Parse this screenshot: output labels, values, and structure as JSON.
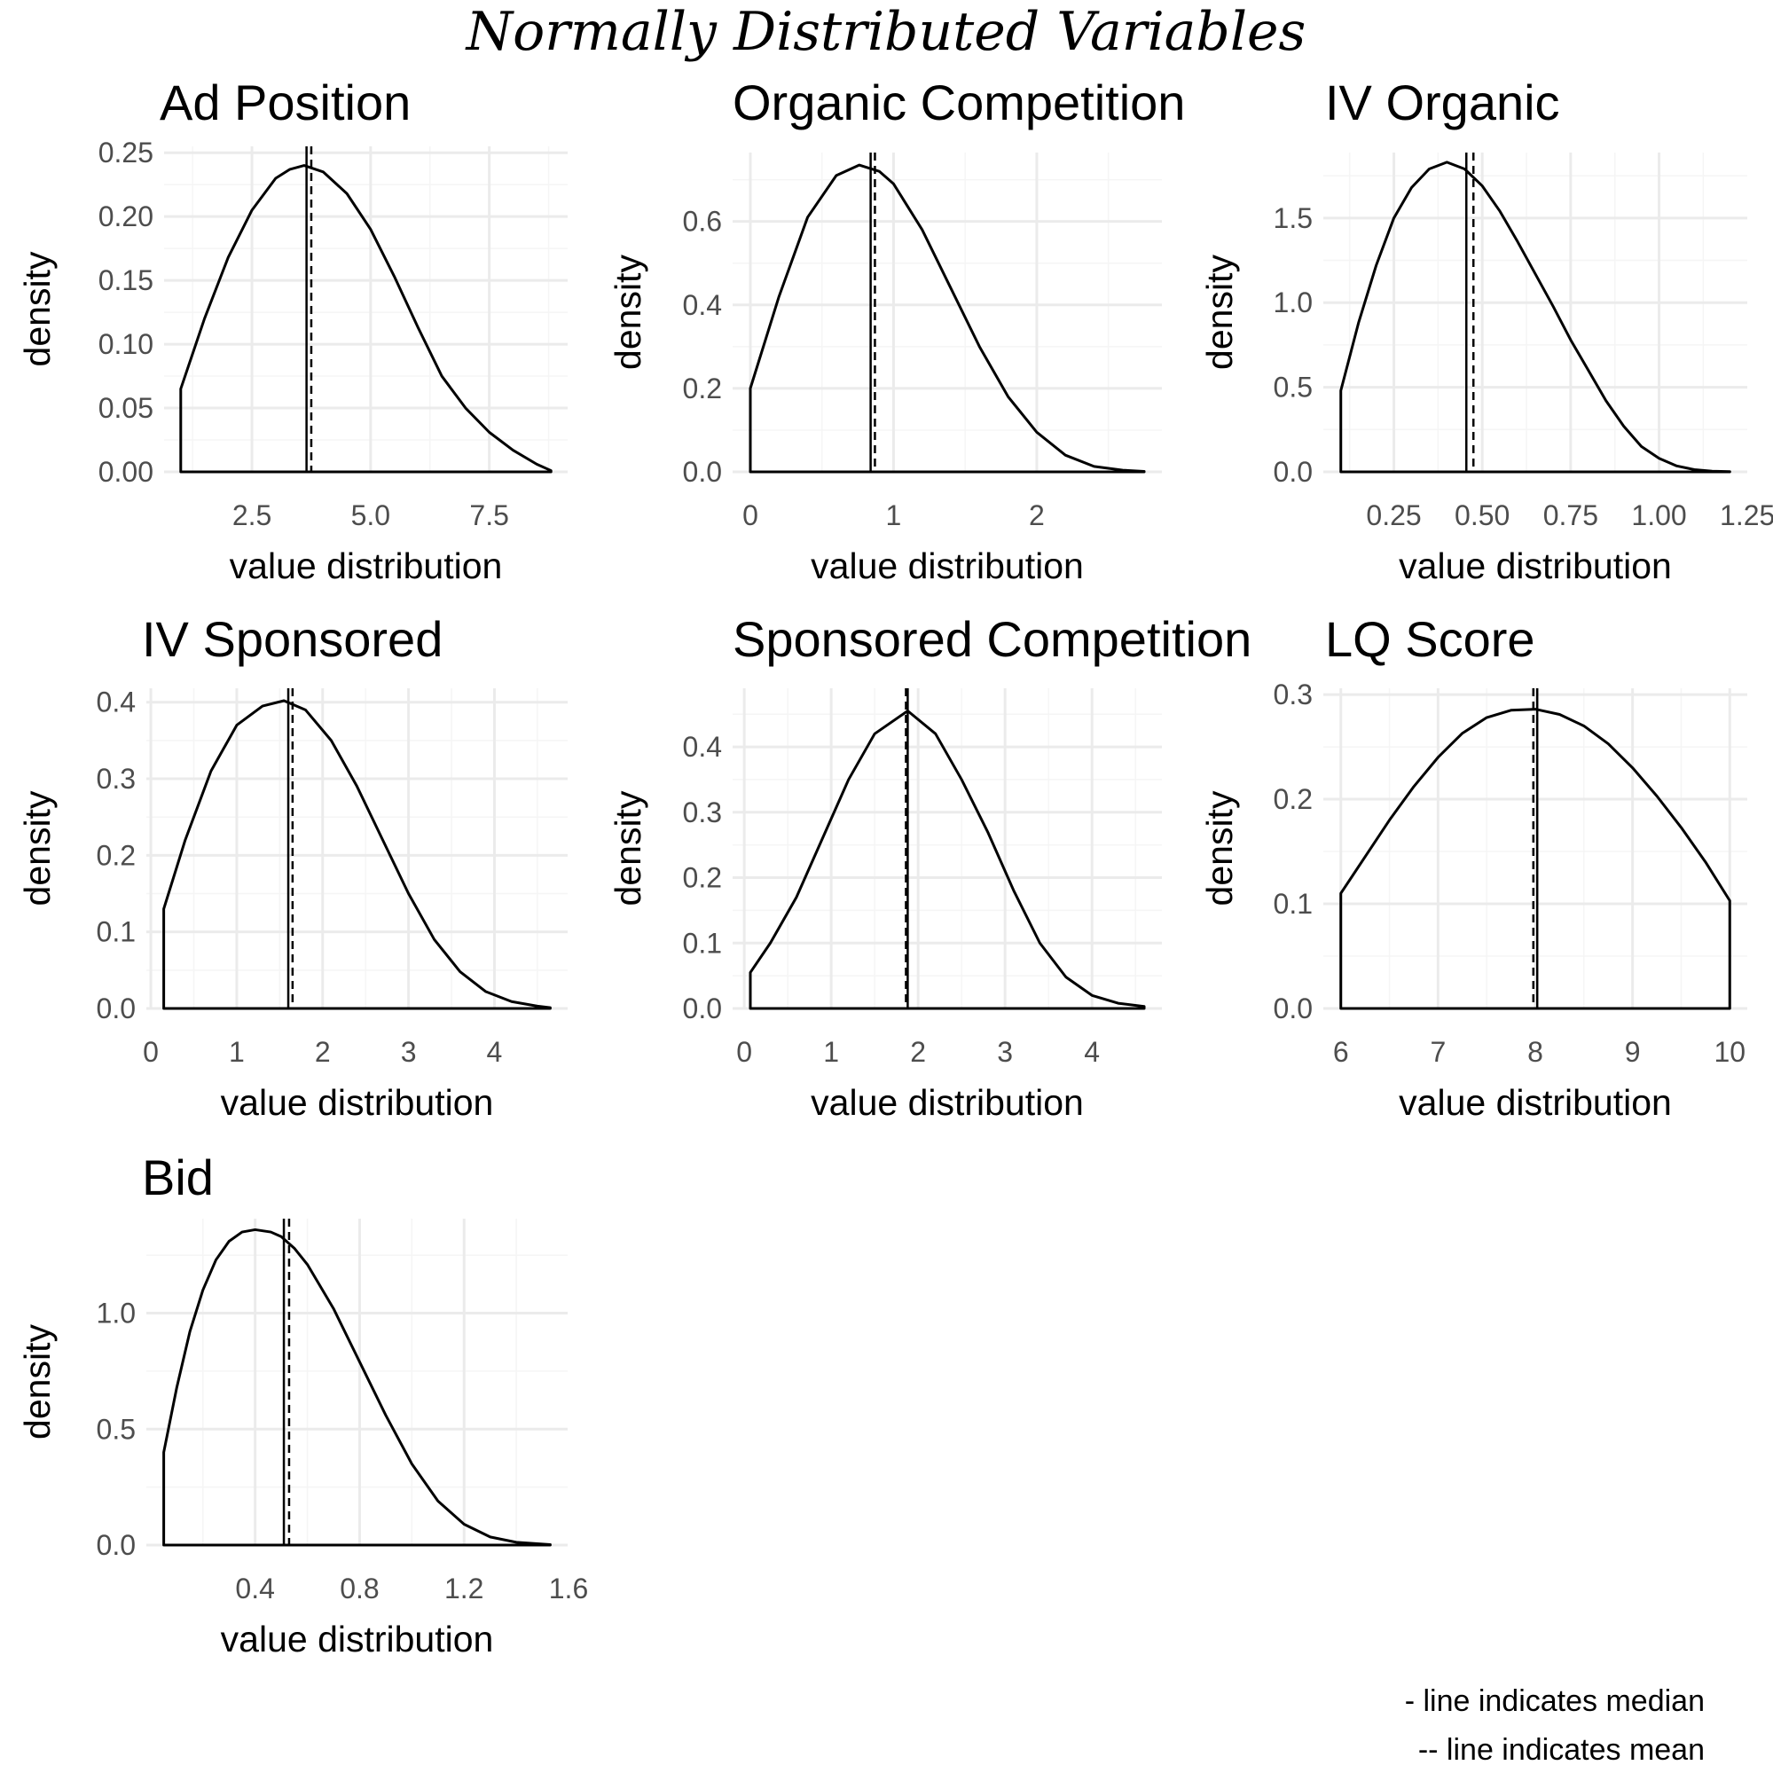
{
  "figure": {
    "title": "Normally Distributed Variables",
    "notes": [
      "- line indicates median",
      "-- line indicates mean"
    ]
  },
  "chart_data": [
    {
      "type": "line",
      "title": "Ad Position",
      "xlabel": "value distribution",
      "ylabel": "density",
      "xlim": [
        1.0,
        8.8
      ],
      "ylim": [
        0,
        0.25
      ],
      "grid": true,
      "xticks": [
        2.5,
        5.0,
        7.5
      ],
      "xtick_labels": [
        "2.5",
        "5.0",
        "7.5"
      ],
      "yticks": [
        0,
        0.05,
        0.1,
        0.15,
        0.2,
        0.25
      ],
      "ytick_labels": [
        "0.00",
        "0.05",
        "0.10",
        "0.15",
        "0.20",
        "0.25"
      ],
      "median": 3.65,
      "mean": 3.75,
      "series": [
        {
          "x": [
            1.0,
            1.5,
            2.0,
            2.5,
            3.0,
            3.3,
            3.6,
            4.0,
            4.5,
            5.0,
            5.5,
            6.0,
            6.5,
            7.0,
            7.5,
            8.0,
            8.5,
            8.8
          ],
          "y": [
            0.065,
            0.12,
            0.168,
            0.205,
            0.23,
            0.237,
            0.24,
            0.235,
            0.218,
            0.19,
            0.153,
            0.113,
            0.075,
            0.05,
            0.031,
            0.017,
            0.006,
            0.001
          ]
        }
      ]
    },
    {
      "type": "line",
      "title": "Organic Competition",
      "xlabel": "value distribution",
      "ylabel": "density",
      "xlim": [
        0,
        2.75
      ],
      "ylim": [
        0,
        0.75
      ],
      "grid": true,
      "xticks": [
        0,
        1,
        2
      ],
      "xtick_labels": [
        "0",
        "1",
        "2"
      ],
      "yticks": [
        0,
        0.2,
        0.4,
        0.6
      ],
      "ytick_labels": [
        "0.0",
        "0.2",
        "0.4",
        "0.6"
      ],
      "median": 0.84,
      "mean": 0.87,
      "series": [
        {
          "x": [
            0,
            0.2,
            0.4,
            0.6,
            0.76,
            0.9,
            1.0,
            1.2,
            1.4,
            1.6,
            1.8,
            2.0,
            2.2,
            2.4,
            2.6,
            2.75
          ],
          "y": [
            0.2,
            0.42,
            0.61,
            0.71,
            0.735,
            0.72,
            0.69,
            0.58,
            0.44,
            0.3,
            0.18,
            0.095,
            0.04,
            0.013,
            0.004,
            0.001
          ]
        }
      ]
    },
    {
      "type": "line",
      "title": "IV Organic",
      "xlabel": "value distribution",
      "ylabel": "density",
      "xlim": [
        0.1,
        1.2
      ],
      "ylim": [
        0,
        1.85
      ],
      "grid": true,
      "xticks": [
        0.25,
        0.5,
        0.75,
        1.0,
        1.25
      ],
      "xtick_labels": [
        "0.25",
        "0.50",
        "0.75",
        "1.00",
        "1.25"
      ],
      "yticks": [
        0,
        0.5,
        1.0,
        1.5
      ],
      "ytick_labels": [
        "0.0",
        "0.5",
        "1.0",
        "1.5"
      ],
      "median": 0.455,
      "mean": 0.475,
      "series": [
        {
          "x": [
            0.1,
            0.15,
            0.2,
            0.25,
            0.3,
            0.35,
            0.4,
            0.45,
            0.5,
            0.55,
            0.6,
            0.65,
            0.7,
            0.75,
            0.8,
            0.85,
            0.9,
            0.95,
            1.0,
            1.05,
            1.1,
            1.15,
            1.2
          ],
          "y": [
            0.48,
            0.88,
            1.22,
            1.5,
            1.68,
            1.79,
            1.83,
            1.79,
            1.69,
            1.54,
            1.36,
            1.17,
            0.98,
            0.78,
            0.6,
            0.42,
            0.27,
            0.15,
            0.08,
            0.035,
            0.013,
            0.004,
            0.001
          ]
        }
      ]
    },
    {
      "type": "line",
      "title": "IV Sponsored",
      "xlabel": "value distribution",
      "ylabel": "density",
      "xlim": [
        0.15,
        4.65
      ],
      "ylim": [
        0,
        0.41
      ],
      "grid": true,
      "xticks": [
        0,
        1,
        2,
        3,
        4
      ],
      "xtick_labels": [
        "0",
        "1",
        "2",
        "3",
        "4"
      ],
      "yticks": [
        0,
        0.1,
        0.2,
        0.3,
        0.4
      ],
      "ytick_labels": [
        "0.0",
        "0.1",
        "0.2",
        "0.3",
        "0.4"
      ],
      "median": 1.6,
      "mean": 1.65,
      "series": [
        {
          "x": [
            0.15,
            0.4,
            0.7,
            1.0,
            1.3,
            1.55,
            1.8,
            2.1,
            2.4,
            2.7,
            3.0,
            3.3,
            3.6,
            3.9,
            4.2,
            4.5,
            4.65
          ],
          "y": [
            0.13,
            0.22,
            0.31,
            0.37,
            0.395,
            0.402,
            0.39,
            0.35,
            0.29,
            0.22,
            0.15,
            0.09,
            0.048,
            0.022,
            0.009,
            0.003,
            0.001
          ]
        }
      ]
    },
    {
      "type": "line",
      "title": "Sponsored Competition",
      "xlabel": "value distribution",
      "ylabel": "density",
      "xlim": [
        0.07,
        4.6
      ],
      "ylim": [
        0,
        0.48
      ],
      "grid": true,
      "xticks": [
        0,
        1,
        2,
        3,
        4
      ],
      "xtick_labels": [
        "0",
        "1",
        "2",
        "3",
        "4"
      ],
      "yticks": [
        0,
        0.1,
        0.2,
        0.3,
        0.4
      ],
      "ytick_labels": [
        "0.0",
        "0.1",
        "0.2",
        "0.3",
        "0.4"
      ],
      "median": 1.88,
      "mean": 1.86,
      "series": [
        {
          "x": [
            0.07,
            0.3,
            0.6,
            0.9,
            1.2,
            1.5,
            1.88,
            2.2,
            2.5,
            2.8,
            3.1,
            3.4,
            3.7,
            4.0,
            4.3,
            4.6
          ],
          "y": [
            0.055,
            0.1,
            0.17,
            0.26,
            0.35,
            0.42,
            0.455,
            0.42,
            0.35,
            0.27,
            0.18,
            0.1,
            0.048,
            0.02,
            0.008,
            0.003
          ]
        }
      ]
    },
    {
      "type": "line",
      "title": "LQ Score",
      "xlabel": "value distribution",
      "ylabel": "density",
      "xlim": [
        6,
        10
      ],
      "ylim": [
        0,
        0.3
      ],
      "grid": true,
      "xticks": [
        6,
        7,
        8,
        9,
        10
      ],
      "xtick_labels": [
        "6",
        "7",
        "8",
        "9",
        "10"
      ],
      "yticks": [
        0,
        0.1,
        0.2,
        0.3
      ],
      "ytick_labels": [
        "0.0",
        "0.1",
        "0.2",
        "0.3"
      ],
      "median": 8.02,
      "mean": 7.98,
      "series": [
        {
          "x": [
            6.0,
            6.25,
            6.5,
            6.75,
            7.0,
            7.25,
            7.5,
            7.75,
            8.0,
            8.25,
            8.5,
            8.75,
            9.0,
            9.25,
            9.5,
            9.75,
            10.0
          ],
          "y": [
            0.11,
            0.145,
            0.18,
            0.212,
            0.24,
            0.263,
            0.278,
            0.285,
            0.286,
            0.281,
            0.27,
            0.253,
            0.23,
            0.203,
            0.173,
            0.14,
            0.103
          ]
        }
      ]
    },
    {
      "type": "line",
      "title": "Bid",
      "xlabel": "value distribution",
      "ylabel": "density",
      "xlim": [
        0.05,
        1.53
      ],
      "ylim": [
        0,
        1.38
      ],
      "grid": true,
      "xticks": [
        0.4,
        0.8,
        1.2,
        1.6
      ],
      "xtick_labels": [
        "0.4",
        "0.8",
        "1.2",
        "1.6"
      ],
      "yticks": [
        0,
        0.5,
        1.0
      ],
      "ytick_labels": [
        "0.0",
        "0.5",
        "1.0"
      ],
      "median": 0.51,
      "mean": 0.53,
      "series": [
        {
          "x": [
            0.05,
            0.1,
            0.15,
            0.2,
            0.25,
            0.3,
            0.35,
            0.4,
            0.46,
            0.5,
            0.55,
            0.6,
            0.7,
            0.8,
            0.9,
            1.0,
            1.1,
            1.2,
            1.3,
            1.4,
            1.53
          ],
          "y": [
            0.4,
            0.68,
            0.92,
            1.1,
            1.23,
            1.31,
            1.35,
            1.36,
            1.35,
            1.33,
            1.28,
            1.21,
            1.02,
            0.79,
            0.56,
            0.35,
            0.19,
            0.09,
            0.035,
            0.012,
            0.002
          ]
        }
      ]
    }
  ]
}
